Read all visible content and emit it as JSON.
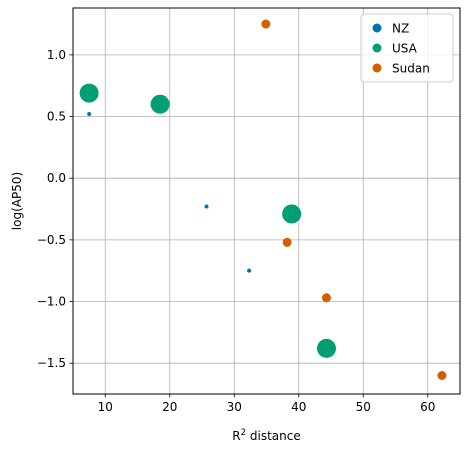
{
  "chart_data": {
    "type": "scatter",
    "xlabel_main": "R",
    "xlabel_sup": "2",
    "xlabel_rest": " distance",
    "ylabel": "log(AP50)",
    "xlim": [
      5,
      65
    ],
    "ylim": [
      -1.75,
      1.38
    ],
    "xticks": [
      10,
      20,
      30,
      40,
      50,
      60
    ],
    "yticks": [
      -1.5,
      -1.0,
      -0.5,
      0.0,
      0.5,
      1.0
    ],
    "ytick_labels": [
      "−1.5",
      "−1.0",
      "−0.5",
      "0.0",
      "0.5",
      "1.0"
    ],
    "grid": true,
    "legend_position": "top-right",
    "series": [
      {
        "name": "NZ",
        "color": "#0072b2",
        "points": [
          {
            "x": 7.5,
            "y": 0.52,
            "size": 1
          },
          {
            "x": 25.7,
            "y": -0.23,
            "size": 1
          },
          {
            "x": 32.3,
            "y": -0.75,
            "size": 1
          }
        ]
      },
      {
        "name": "USA",
        "color": "#009e73",
        "points": [
          {
            "x": 7.5,
            "y": 0.69,
            "size": 5
          },
          {
            "x": 18.5,
            "y": 0.6,
            "size": 5
          },
          {
            "x": 38.9,
            "y": -0.29,
            "size": 5
          },
          {
            "x": 44.3,
            "y": -1.38,
            "size": 5
          }
        ]
      },
      {
        "name": "Sudan",
        "color": "#d55e00",
        "points": [
          {
            "x": 34.9,
            "y": 1.25,
            "size": 2
          },
          {
            "x": 38.2,
            "y": -0.52,
            "size": 2
          },
          {
            "x": 44.3,
            "y": -0.97,
            "size": 2
          },
          {
            "x": 62.2,
            "y": -1.6,
            "size": 2
          }
        ]
      }
    ]
  }
}
